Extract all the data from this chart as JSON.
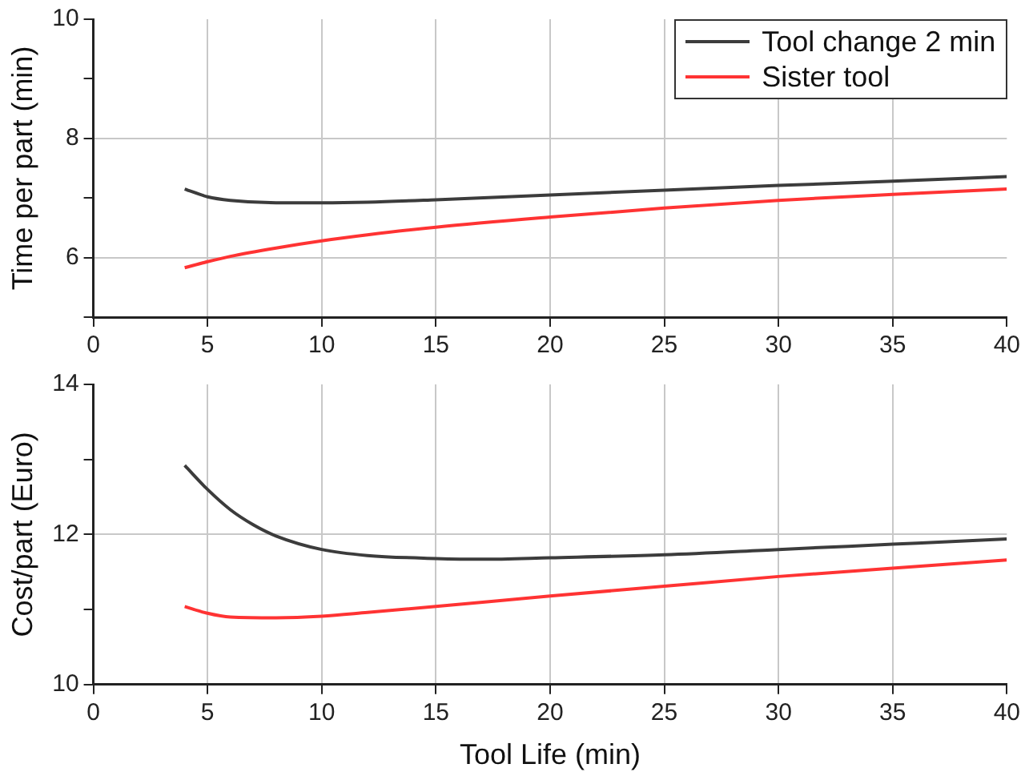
{
  "chart_data": [
    {
      "type": "line",
      "ylabel": "Time per part (min)",
      "xlim": [
        0,
        40
      ],
      "xticks": [
        0,
        5,
        10,
        15,
        20,
        25,
        30,
        35,
        40
      ],
      "ylim": [
        5,
        10
      ],
      "yticks": [
        {
          "value": 5,
          "label": null
        },
        6,
        {
          "value": 7,
          "label": null
        },
        8,
        {
          "value": 9,
          "label": null
        },
        10
      ],
      "grid": true,
      "legend": "top right",
      "marker": "none",
      "line_style": "solid",
      "series": [
        {
          "name": "Tool change 2 min",
          "color": "#3c3c3c",
          "x": [
            4,
            5,
            6,
            8,
            10,
            12,
            15,
            20,
            25,
            30,
            35,
            40
          ],
          "values": [
            7.15,
            7.02,
            6.96,
            6.92,
            6.92,
            6.93,
            6.97,
            7.05,
            7.13,
            7.21,
            7.28,
            7.36
          ]
        },
        {
          "name": "Sister tool",
          "color": "#ff3333",
          "x": [
            4,
            5,
            6,
            8,
            10,
            12,
            15,
            20,
            25,
            30,
            35,
            40
          ],
          "values": [
            5.83,
            5.93,
            6.02,
            6.16,
            6.28,
            6.38,
            6.51,
            6.68,
            6.83,
            6.96,
            7.06,
            7.15
          ]
        }
      ]
    },
    {
      "type": "line",
      "xlabel": "Tool Life (min)",
      "ylabel": "Cost/part (Euro)",
      "xlim": [
        0,
        40
      ],
      "xticks": [
        0,
        5,
        10,
        15,
        20,
        25,
        30,
        35,
        40
      ],
      "ylim": [
        10,
        14
      ],
      "yticks": [
        10,
        {
          "value": 11,
          "label": null
        },
        12,
        {
          "value": 13,
          "label": null
        },
        14
      ],
      "grid": true,
      "marker": "none",
      "line_style": "solid",
      "series": [
        {
          "color": "#3c3c3c",
          "x": [
            4,
            5,
            6,
            7,
            8,
            10,
            12,
            15,
            17,
            20,
            25,
            30,
            35,
            40
          ],
          "values": [
            12.92,
            12.6,
            12.33,
            12.13,
            11.98,
            11.8,
            11.72,
            11.68,
            11.67,
            11.69,
            11.73,
            11.8,
            11.87,
            11.94
          ]
        },
        {
          "color": "#ff3333",
          "x": [
            4,
            5,
            6,
            8,
            10,
            12,
            15,
            20,
            25,
            30,
            35,
            40
          ],
          "values": [
            11.04,
            10.95,
            10.9,
            10.89,
            10.91,
            10.96,
            11.04,
            11.18,
            11.31,
            11.44,
            11.55,
            11.66
          ]
        }
      ]
    }
  ]
}
